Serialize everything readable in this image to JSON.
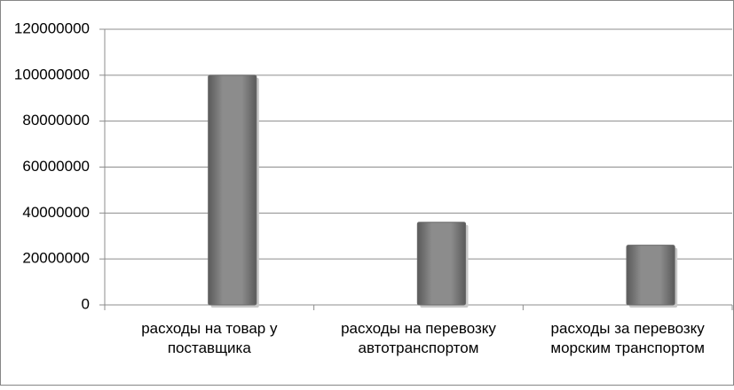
{
  "chart_data": {
    "type": "bar",
    "categories": [
      "расходы на товар у поставщика",
      "расходы на перевозку автотранспортом",
      "расходы за перевозку морским транспортом"
    ],
    "values": [
      100000000,
      36000000,
      26000000
    ],
    "color": "#808080",
    "ylim": [
      0,
      120000000
    ],
    "yticks": [
      0,
      20000000,
      40000000,
      60000000,
      80000000,
      100000000,
      120000000
    ],
    "grid": true
  }
}
